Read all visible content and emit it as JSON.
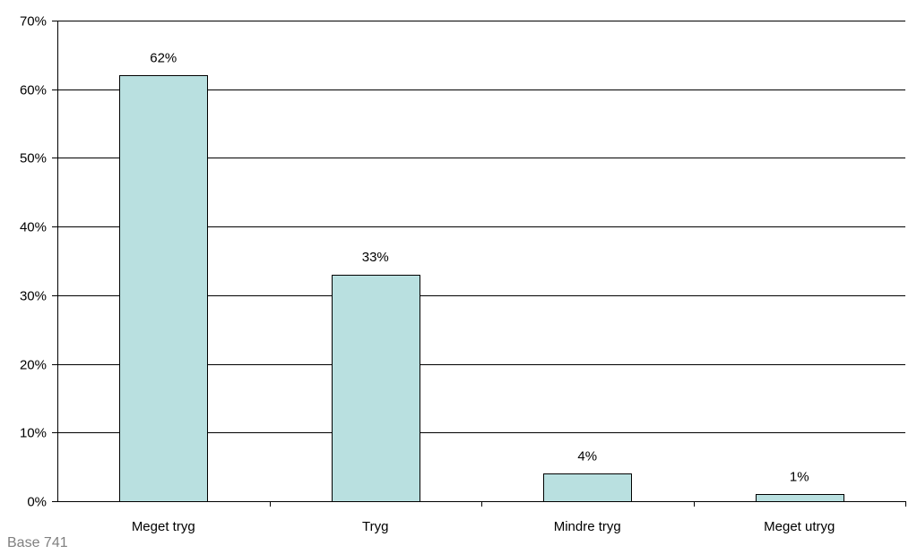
{
  "chart_data": {
    "type": "bar",
    "categories": [
      "Meget tryg",
      "Tryg",
      "Mindre tryg",
      "Meget utryg"
    ],
    "values": [
      62,
      33,
      4,
      1
    ],
    "data_labels": [
      "62%",
      "33%",
      "4%",
      "1%"
    ],
    "ylim": [
      0,
      70
    ],
    "yticks": [
      0,
      10,
      20,
      30,
      40,
      50,
      60,
      70
    ],
    "ytick_labels": [
      "0%",
      "10%",
      "20%",
      "30%",
      "40%",
      "50%",
      "60%",
      "70%"
    ],
    "grid": true,
    "legend": "none",
    "colors": {
      "bar_fill": "#b9e0e0",
      "bar_stroke": "#000000",
      "grid": "#000000"
    }
  },
  "footnote": "Base 741"
}
